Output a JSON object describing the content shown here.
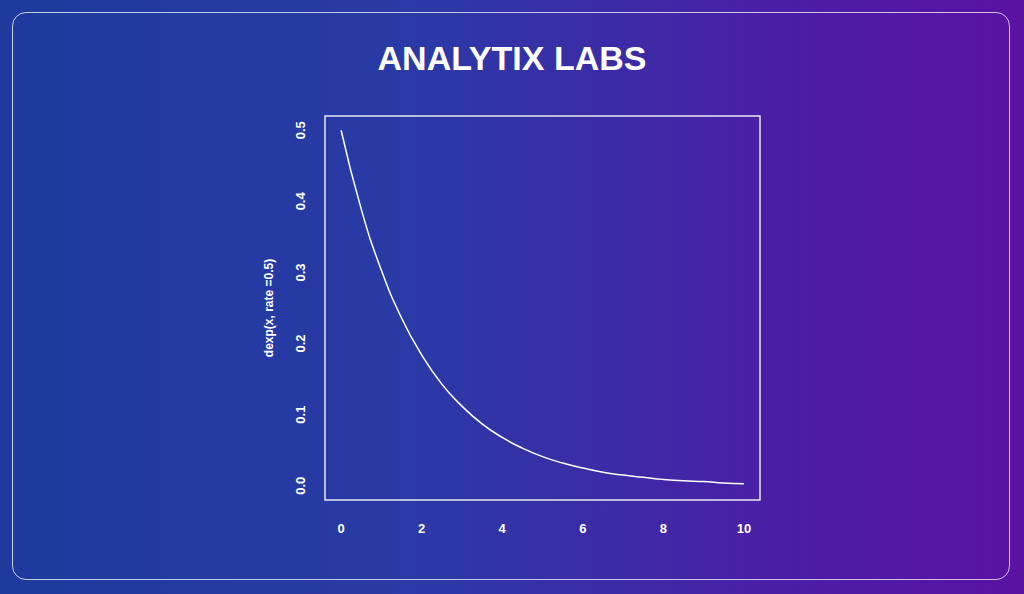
{
  "chart_data": {
    "type": "line",
    "title": "ANALYTIX LABS",
    "ylabel": "dexp(x, rate =0.5)",
    "x": [
      0,
      0.5,
      1,
      1.5,
      2,
      2.5,
      3,
      3.5,
      4,
      4.5,
      5,
      5.5,
      6,
      6.5,
      7,
      7.5,
      8,
      8.5,
      9,
      9.5,
      10
    ],
    "values": [
      0.5,
      0.389,
      0.303,
      0.236,
      0.184,
      0.143,
      0.112,
      0.087,
      0.068,
      0.053,
      0.041,
      0.032,
      0.025,
      0.019,
      0.015,
      0.012,
      0.009,
      0.007,
      0.006,
      0.004,
      0.003
    ],
    "color": "#ffffff",
    "xlim": [
      -0.4,
      10.4
    ],
    "xticks": [
      0,
      2,
      4,
      6,
      8,
      10
    ],
    "ylim": [
      -0.02,
      0.52
    ],
    "yticks": [
      {
        "value": 0,
        "label": "0.0"
      },
      0.1,
      0.2,
      0.3,
      0.4,
      0.5
    ],
    "grid": false,
    "marker": "none"
  }
}
